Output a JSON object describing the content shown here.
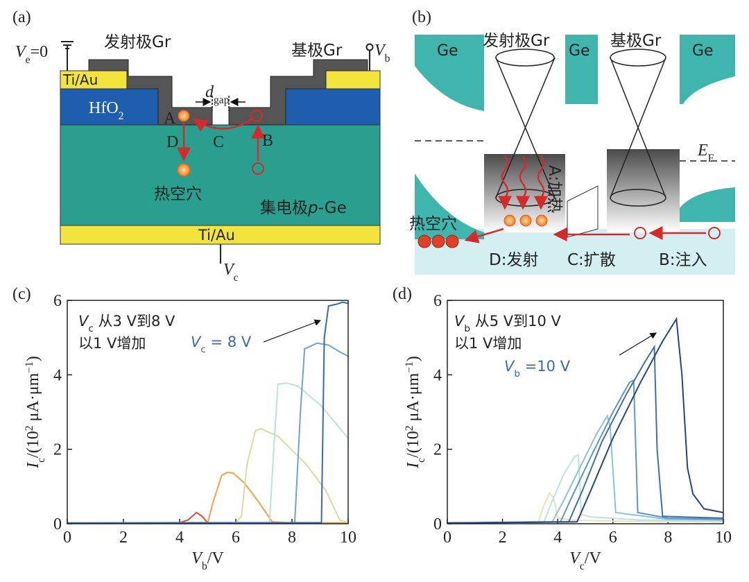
{
  "panel_a": {
    "label": "(a)",
    "ve": [
      {
        "t": "V",
        "s": "i"
      },
      {
        "t": "e",
        "s": "sub"
      },
      {
        "t": "=0"
      }
    ],
    "emitter": "发射极Gr",
    "base": "基极Gr",
    "vb": [
      {
        "t": "V",
        "s": "i"
      },
      {
        "t": "b",
        "s": "sub"
      }
    ],
    "tiau_top": "Ti/Au",
    "tiau_bottom": "Ti/Au",
    "dgap": [
      {
        "t": "d",
        "s": "i"
      },
      {
        "t": "gap",
        "s": "sub"
      }
    ],
    "hfo2": [
      {
        "t": "HfO"
      },
      {
        "t": "2",
        "s": "sub"
      }
    ],
    "a": "A",
    "b": "B",
    "c": "C",
    "d": "D",
    "hot_holes": "热空穴",
    "collector": [
      {
        "t": "集电极"
      },
      {
        "t": "p",
        "s": "i"
      },
      {
        "t": "-Ge"
      }
    ],
    "vc": [
      {
        "t": "V",
        "s": "i"
      },
      {
        "t": "c",
        "s": "sub"
      }
    ]
  },
  "panel_b": {
    "label": "(b)",
    "ge": [
      "Ge",
      "Ge",
      "Ge"
    ],
    "emitter": "发射极Gr",
    "base": "基极Gr",
    "ef": [
      {
        "t": "E",
        "s": "i"
      },
      {
        "t": "F",
        "s": "sub"
      }
    ],
    "heat": "A:加热",
    "hot_holes": "热空穴",
    "emit": "D:发射",
    "diffuse": "C:扩散",
    "inject": "B:注入"
  },
  "chart_data": [
    {
      "type": "line",
      "panel_label": "(c)",
      "x_label": [
        {
          "t": "V",
          "s": "i"
        },
        {
          "t": "b",
          "s": "sub"
        },
        {
          "t": "/V"
        }
      ],
      "y_label": [
        {
          "t": "I",
          "s": "i"
        },
        {
          "t": "c",
          "s": "sub"
        },
        {
          "t": "/(10"
        },
        {
          "t": "2",
          "s": "sup"
        },
        {
          "t": " μA·μm"
        },
        {
          "t": "−1",
          "s": "sup"
        },
        {
          "t": ")"
        }
      ],
      "xlim": [
        0,
        10
      ],
      "ylim": [
        0,
        6
      ],
      "xticks": [
        0,
        2,
        4,
        6,
        8,
        10
      ],
      "yticks": [
        0,
        2,
        4,
        6
      ],
      "annotations": [
        {
          "text": [
            {
              "t": "V",
              "s": "i"
            },
            {
              "t": "c",
              "s": "sub"
            },
            {
              "t": " 从3 V到8 V"
            }
          ],
          "color": "#222222"
        },
        {
          "text": [
            {
              "t": "以1 V增加"
            }
          ],
          "color": "#222222"
        },
        {
          "text": [
            {
              "t": "V",
              "s": "i"
            },
            {
              "t": "c",
              "s": "sub"
            },
            {
              "t": " = 8 V"
            }
          ],
          "color": "#3a6aa5"
        }
      ],
      "series": [
        {
          "color": "#e84a3a",
          "x": [
            0,
            2,
            4,
            4.3,
            4.6,
            4.8,
            5.0,
            6,
            8,
            10
          ],
          "values": [
            0.02,
            0.02,
            0.03,
            0.1,
            0.3,
            0.2,
            0.02,
            0.02,
            0.02,
            0.02
          ]
        },
        {
          "color": "#f5a040",
          "x": [
            0,
            4,
            5.0,
            5.2,
            5.5,
            5.7,
            5.9,
            6.3,
            6.8,
            7.3,
            8,
            10
          ],
          "values": [
            0.02,
            0.03,
            0.03,
            0.6,
            1.3,
            1.38,
            1.36,
            1.1,
            0.6,
            0.05,
            0.02,
            0.02
          ]
        },
        {
          "color": "#dcd9a0",
          "x": [
            0,
            6,
            6.2,
            6.4,
            6.7,
            6.9,
            7.5,
            8.5,
            9.2,
            9.7,
            10
          ],
          "values": [
            0.02,
            0.03,
            0.2,
            1.6,
            2.5,
            2.55,
            2.35,
            1.6,
            0.9,
            0.1,
            0.03
          ]
        },
        {
          "color": "#b8e2e2",
          "x": [
            0,
            7.2,
            7.35,
            7.5,
            7.8,
            8.2,
            9,
            10
          ],
          "values": [
            0.02,
            0.03,
            2.0,
            3.75,
            3.78,
            3.7,
            3.2,
            2.3
          ]
        },
        {
          "color": "#6fa3cc",
          "x": [
            0,
            8.1,
            8.3,
            8.45,
            8.9,
            9.3,
            9.7,
            10
          ],
          "values": [
            0.02,
            0.03,
            3.0,
            4.7,
            4.85,
            4.8,
            4.62,
            4.5
          ]
        },
        {
          "color": "#3a6aa5",
          "x": [
            0,
            9.05,
            9.15,
            9.3,
            9.6,
            9.8,
            10
          ],
          "values": [
            0.02,
            0.03,
            5.0,
            5.85,
            5.9,
            5.95,
            5.92
          ]
        }
      ]
    },
    {
      "type": "line",
      "panel_label": "(d)",
      "x_label": [
        {
          "t": "V",
          "s": "i"
        },
        {
          "t": "c",
          "s": "sub"
        },
        {
          "t": "/V"
        }
      ],
      "y_label": [
        {
          "t": "I",
          "s": "i"
        },
        {
          "t": "c",
          "s": "sub"
        },
        {
          "t": "/(10"
        },
        {
          "t": "2",
          "s": "sup"
        },
        {
          "t": " μA·μm"
        },
        {
          "t": "−1",
          "s": "sup"
        },
        {
          "t": ")"
        }
      ],
      "xlim": [
        0,
        10
      ],
      "ylim": [
        0,
        6
      ],
      "xticks": [
        0,
        2,
        4,
        6,
        8,
        10
      ],
      "yticks": [
        0,
        2,
        4,
        6
      ],
      "annotations": [
        {
          "text": [
            {
              "t": "V",
              "s": "i"
            },
            {
              "t": "b",
              "s": "sub"
            },
            {
              "t": " 从5 V到10 V"
            }
          ],
          "color": "#222222"
        },
        {
          "text": [
            {
              "t": "以1 V增加"
            }
          ],
          "color": "#222222"
        },
        {
          "text": [
            {
              "t": "V",
              "s": "i"
            },
            {
              "t": "b",
              "s": "sub"
            },
            {
              "t": " =10 V"
            }
          ],
          "color": "#3a6aa5"
        }
      ],
      "series": [
        {
          "color": "#e6e2b8",
          "x": [
            0,
            3.3,
            3.5,
            3.7,
            3.85,
            4.0,
            4.5,
            6,
            10
          ],
          "values": [
            0.02,
            0.05,
            0.5,
            0.82,
            0.7,
            0.15,
            0.1,
            0.07,
            0.05
          ]
        },
        {
          "color": "#bde0ea",
          "x": [
            0,
            3.5,
            3.8,
            4.2,
            4.6,
            4.75,
            4.85,
            5.2,
            7,
            10
          ],
          "values": [
            0.02,
            0.05,
            0.6,
            1.3,
            1.8,
            1.85,
            0.25,
            0.18,
            0.1,
            0.08
          ]
        },
        {
          "color": "#8dc0da",
          "x": [
            0,
            3.8,
            4.2,
            4.8,
            5.4,
            5.8,
            5.9,
            6.1,
            8,
            10
          ],
          "values": [
            0.02,
            0.05,
            0.6,
            1.5,
            2.4,
            2.9,
            2.6,
            0.3,
            0.12,
            0.1
          ]
        },
        {
          "color": "#5f97c2",
          "x": [
            0,
            4.1,
            4.5,
            5.2,
            6,
            6.6,
            6.75,
            6.9,
            8,
            10
          ],
          "values": [
            0.02,
            0.05,
            0.7,
            1.8,
            3.0,
            3.8,
            3.85,
            0.3,
            0.15,
            0.12
          ]
        },
        {
          "color": "#3f6ea8",
          "x": [
            0,
            4.4,
            4.9,
            5.6,
            6.5,
            7.2,
            7.5,
            7.6,
            7.8,
            10
          ],
          "values": [
            0.02,
            0.05,
            0.9,
            2.2,
            3.5,
            4.4,
            4.75,
            2.0,
            0.2,
            0.15
          ]
        },
        {
          "color": "#26457d",
          "x": [
            0,
            4.7,
            5.2,
            6,
            7,
            7.8,
            8.3,
            8.5,
            8.7,
            8.9,
            9.3,
            10
          ],
          "values": [
            0.02,
            0.05,
            0.9,
            2.3,
            3.8,
            4.9,
            5.5,
            4.0,
            1.5,
            0.8,
            0.4,
            0.3
          ]
        }
      ]
    }
  ]
}
